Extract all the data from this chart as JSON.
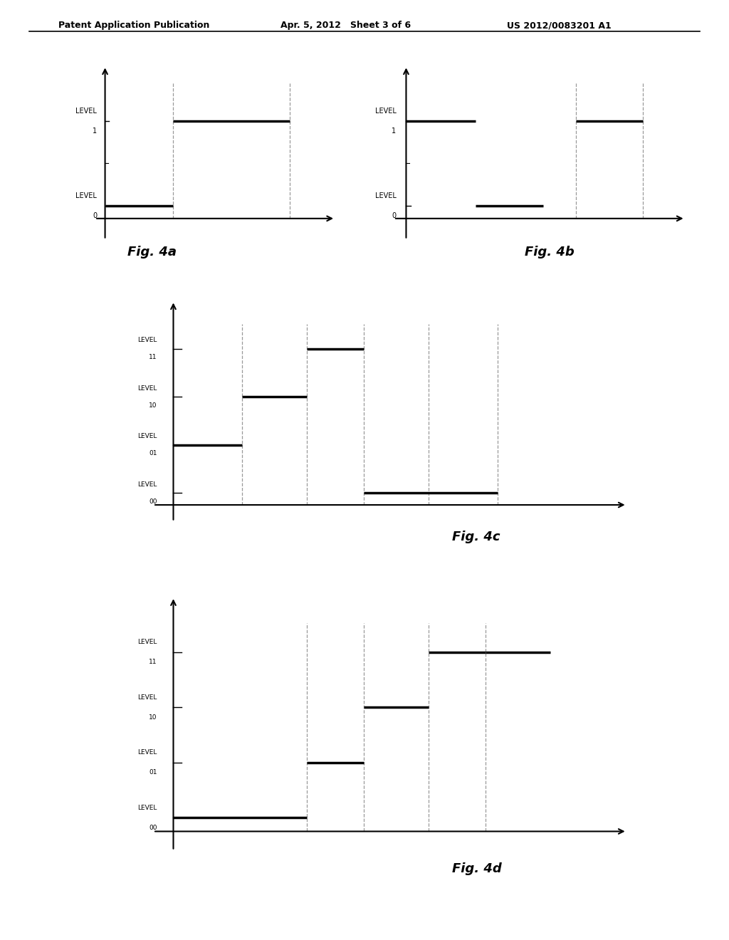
{
  "header_left": "Patent Application Publication",
  "header_mid": "Apr. 5, 2012   Sheet 3 of 6",
  "header_right": "US 2012/0083201 A1",
  "background": "#ffffff",
  "fig4a": {
    "label": "Fig. 4a",
    "ytick_labels": [
      "LEVEL\n0",
      "LEVEL\n1"
    ],
    "ytick_positions": [
      0,
      1
    ],
    "segments": [
      {
        "x": [
          0.0,
          0.33
        ],
        "y": 0
      },
      {
        "x": [
          0.33,
          0.9
        ],
        "y": 1
      }
    ],
    "vlines": [
      0.33,
      0.9
    ]
  },
  "fig4b": {
    "label": "Fig. 4b",
    "ytick_labels": [
      "LEVEL\n0",
      "LEVEL\n1"
    ],
    "ytick_positions": [
      0,
      1
    ],
    "segments": [
      {
        "x": [
          0.0,
          0.28
        ],
        "y": 1
      },
      {
        "x": [
          0.28,
          0.55
        ],
        "y": 0
      },
      {
        "x": [
          0.68,
          0.95
        ],
        "y": 1
      }
    ],
    "vlines": [
      0.68,
      0.95
    ]
  },
  "fig4c": {
    "label": "Fig. 4c",
    "ytick_labels": [
      "LEVEL\n00",
      "LEVEL\n01",
      "LEVEL\n10",
      "LEVEL\n11"
    ],
    "ytick_positions": [
      0,
      1,
      2,
      3
    ],
    "segments": [
      {
        "x": [
          0.0,
          0.17
        ],
        "y": 1
      },
      {
        "x": [
          0.17,
          0.33
        ],
        "y": 2
      },
      {
        "x": [
          0.33,
          0.47
        ],
        "y": 3
      },
      {
        "x": [
          0.47,
          0.8
        ],
        "y": 0
      }
    ],
    "vlines": [
      0.17,
      0.33,
      0.47,
      0.63,
      0.8
    ]
  },
  "fig4d": {
    "label": "Fig. 4d",
    "ytick_labels": [
      "LEVEL\n00",
      "LEVEL\n01",
      "LEVEL\n10",
      "LEVEL\n11"
    ],
    "ytick_positions": [
      0,
      1,
      2,
      3
    ],
    "segments": [
      {
        "x": [
          0.0,
          0.33
        ],
        "y": 0
      },
      {
        "x": [
          0.33,
          0.47
        ],
        "y": 1
      },
      {
        "x": [
          0.47,
          0.63
        ],
        "y": 2
      },
      {
        "x": [
          0.63,
          0.77
        ],
        "y": 3
      },
      {
        "x": [
          0.77,
          0.93
        ],
        "y": 3
      }
    ],
    "vlines": [
      0.33,
      0.47,
      0.63,
      0.77
    ]
  }
}
